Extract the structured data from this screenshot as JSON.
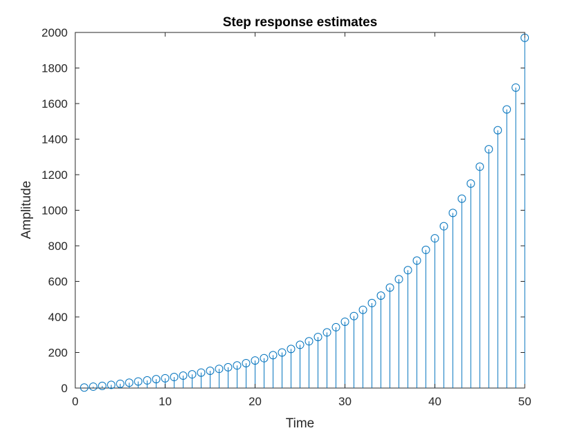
{
  "chart_data": {
    "type": "scatter",
    "style": "stem",
    "title": "Step response estimates",
    "xlabel": "Time",
    "ylabel": "Amplitude",
    "xlim": [
      0,
      50
    ],
    "ylim": [
      0,
      2000
    ],
    "xticks": [
      0,
      10,
      20,
      30,
      40,
      50
    ],
    "yticks": [
      0,
      200,
      400,
      600,
      800,
      1000,
      1200,
      1400,
      1600,
      1800,
      2000
    ],
    "grid": false,
    "legend": "none",
    "series_color": "#0072BD",
    "axis_color": "#262626",
    "series": [
      {
        "x": [
          1,
          2,
          3,
          4,
          5,
          6,
          7,
          8,
          9,
          10,
          11,
          12,
          13,
          14,
          15,
          16,
          17,
          18,
          19,
          20,
          21,
          22,
          23,
          24,
          25,
          26,
          27,
          28,
          29,
          30,
          31,
          32,
          33,
          34,
          35,
          36,
          37,
          38,
          39,
          40,
          41,
          42,
          43,
          44,
          45,
          46,
          47,
          48,
          49,
          50
        ],
        "y": [
          3,
          8,
          12,
          18,
          24,
          30,
          37,
          43,
          50,
          55,
          62,
          70,
          77,
          87,
          97,
          108,
          117,
          127,
          140,
          155,
          168,
          185,
          200,
          220,
          243,
          263,
          287,
          313,
          342,
          373,
          405,
          440,
          478,
          520,
          565,
          612,
          663,
          717,
          777,
          842,
          910,
          985,
          1065,
          1150,
          1245,
          1343,
          1450,
          1567,
          1690,
          1970
        ]
      }
    ]
  }
}
